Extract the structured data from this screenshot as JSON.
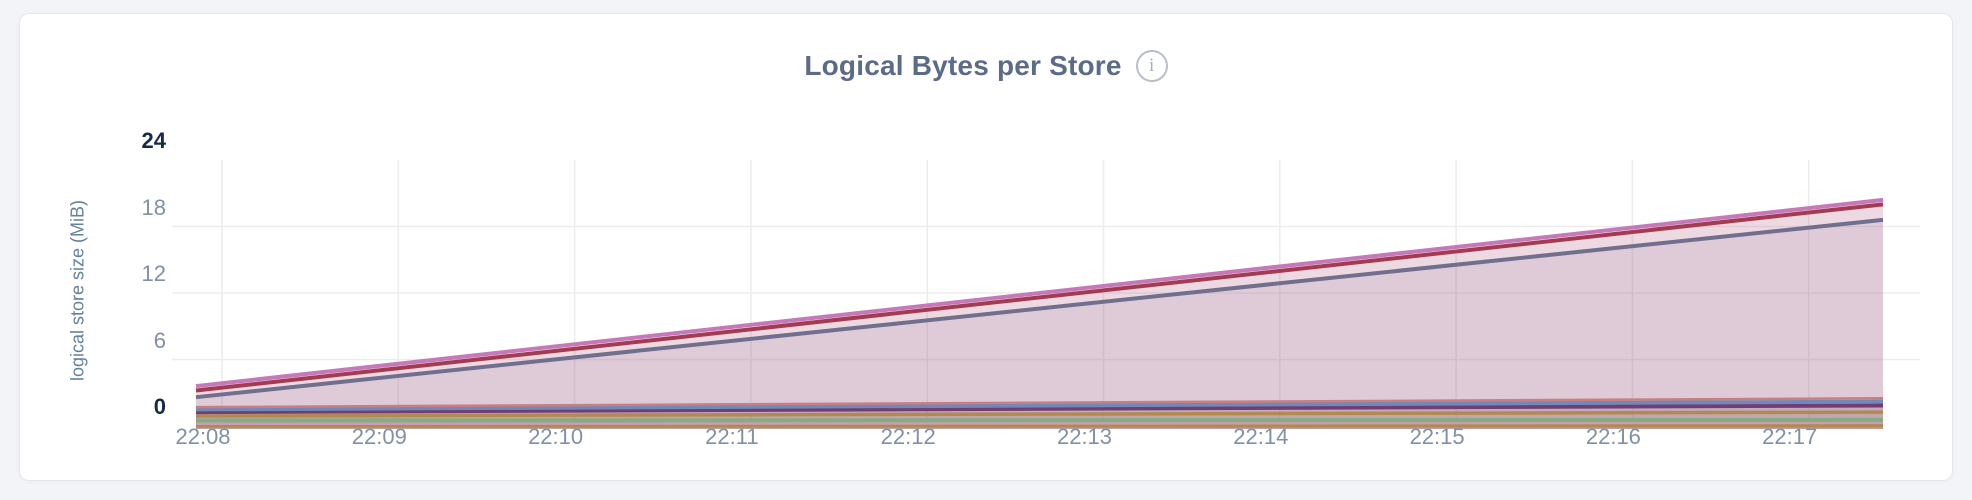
{
  "header": {
    "info_icon_glyph": "i"
  },
  "chart_data": {
    "type": "area",
    "title": "Logical Bytes per Store",
    "xlabel": "",
    "ylabel": "logical store size (MiB)",
    "x_tick_labels": [
      "22:08",
      "22:09",
      "22:10",
      "22:11",
      "22:12",
      "22:13",
      "22:14",
      "22:15",
      "22:16",
      "22:17"
    ],
    "y_tick_values": [
      0,
      6,
      12,
      18,
      24
    ],
    "ylim": [
      0,
      24
    ],
    "grid": true,
    "legend_position": "none",
    "series_note": "each series rises approximately linearly from its start value (left edge, just before 22:08) to its end value (right edge, just after 22:17); values in MiB",
    "series": [
      {
        "color": "#c678b8",
        "values": [
          3.6,
          20.4
        ]
      },
      {
        "color": "#a33b52",
        "values": [
          3.2,
          20.0
        ]
      },
      {
        "color": "#716e8e",
        "values": [
          2.6,
          18.6
        ]
      },
      {
        "color": "#c87e82",
        "values": [
          1.7,
          2.5
        ]
      },
      {
        "color": "#7089b8",
        "values": [
          1.5,
          2.2
        ]
      },
      {
        "color": "#713d72",
        "values": [
          1.25,
          1.85
        ]
      },
      {
        "color": "#b28a50",
        "values": [
          0.9,
          1.25
        ]
      },
      {
        "color": "#85ab80",
        "values": [
          0.5,
          0.55
        ]
      },
      {
        "color": "#cb9cb4",
        "values": [
          0.22,
          0.3
        ]
      },
      {
        "color": "#b28a50",
        "values": [
          0.02,
          0.05
        ]
      }
    ]
  }
}
